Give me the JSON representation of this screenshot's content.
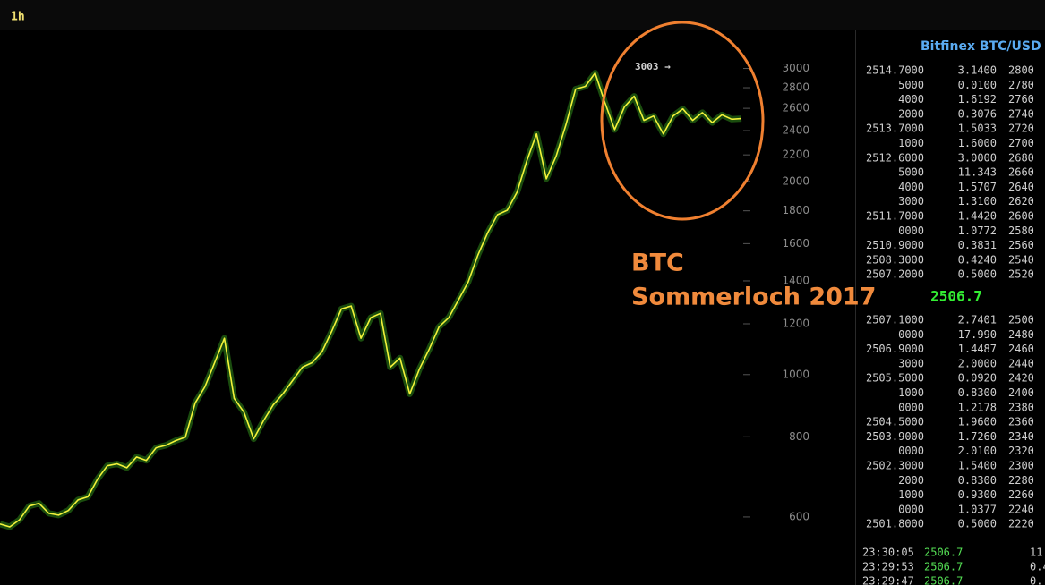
{
  "toolbar": {
    "interval": "1h"
  },
  "chart_data": {
    "type": "line",
    "log_scale": true,
    "grid": false,
    "peak_label": "3003 →",
    "annotation_lines": [
      "BTC",
      "Sommerloch 2017"
    ],
    "color": "#f2f23a",
    "glow_color": "#2f8a1a",
    "categories": [
      null,
      null,
      null,
      null,
      null,
      null,
      null,
      null,
      null,
      null,
      null,
      null,
      null,
      null,
      null,
      null,
      null,
      null,
      null,
      null,
      null,
      null,
      null,
      null,
      null,
      null,
      null,
      null,
      null,
      null,
      null,
      null,
      null,
      null,
      null,
      null,
      null,
      null,
      null,
      null,
      null,
      null,
      null,
      null,
      null,
      null,
      null,
      null,
      null,
      null,
      null,
      null,
      null,
      null,
      null,
      null,
      null,
      null,
      null,
      null,
      null,
      null,
      null,
      null,
      null,
      null,
      null,
      null,
      null,
      null,
      null,
      null,
      null,
      null,
      null,
      null,
      null
    ],
    "values": [
      585,
      579,
      594,
      624,
      630,
      608,
      604,
      614,
      638,
      645,
      687,
      721,
      726,
      716,
      744,
      735,
      769,
      776,
      789,
      799,
      903,
      957,
      1044,
      1139,
      918,
      874,
      794,
      847,
      897,
      933,
      979,
      1027,
      1044,
      1085,
      1168,
      1266,
      1279,
      1139,
      1227,
      1246,
      1027,
      1061,
      933,
      1021,
      1096,
      1187,
      1227,
      1308,
      1395,
      1537,
      1665,
      1775,
      1804,
      1924,
      2153,
      2372,
      2019,
      2189,
      2449,
      2786,
      2814,
      2952,
      2655,
      2409,
      2613,
      2715,
      2490,
      2529,
      2372,
      2529,
      2595,
      2490,
      2560,
      2470,
      2540,
      2500,
      2506
    ],
    "ylim": [
      470,
      3450
    ],
    "yticks": [
      600,
      800,
      1000,
      1200,
      1400,
      1600,
      1800,
      2000,
      2200,
      2400,
      2600,
      2800,
      3000
    ]
  },
  "order_book": {
    "title": "Bitfinex BTC/USD",
    "asks": [
      [
        "2514.7000",
        "3.1400",
        "2800"
      ],
      [
        "5000",
        "0.0100",
        "2780"
      ],
      [
        "4000",
        "1.6192",
        "2760"
      ],
      [
        "2000",
        "0.3076",
        "2740"
      ],
      [
        "2513.7000",
        "1.5033",
        "2720"
      ],
      [
        "1000",
        "1.6000",
        "2700"
      ],
      [
        "2512.6000",
        "3.0000",
        "2680"
      ],
      [
        "5000",
        "11.343",
        "2660"
      ],
      [
        "4000",
        "1.5707",
        "2640"
      ],
      [
        "3000",
        "1.3100",
        "2620"
      ],
      [
        "2511.7000",
        "1.4420",
        "2600"
      ],
      [
        "0000",
        "1.0772",
        "2580"
      ],
      [
        "2510.9000",
        "0.3831",
        "2560"
      ],
      [
        "2508.3000",
        "0.4240",
        "2540"
      ],
      [
        "2507.2000",
        "0.5000",
        "2520"
      ]
    ],
    "last_price": "2506.7",
    "bids": [
      [
        "2507.1000",
        "2.7401",
        "2500"
      ],
      [
        "0000",
        "17.990",
        "2480"
      ],
      [
        "2506.9000",
        "1.4487",
        "2460"
      ],
      [
        "3000",
        "2.0000",
        "2440"
      ],
      [
        "2505.5000",
        "0.0920",
        "2420"
      ],
      [
        "1000",
        "0.8300",
        "2400"
      ],
      [
        "0000",
        "1.2178",
        "2380"
      ],
      [
        "2504.5000",
        "1.9600",
        "2360"
      ],
      [
        "2503.9000",
        "1.7260",
        "2340"
      ],
      [
        "0000",
        "2.0100",
        "2320"
      ],
      [
        "2502.3000",
        "1.5400",
        "2300"
      ],
      [
        "2000",
        "0.8300",
        "2280"
      ],
      [
        "1000",
        "0.9300",
        "2260"
      ],
      [
        "0000",
        "1.0377",
        "2240"
      ],
      [
        "2501.8000",
        "0.5000",
        "2220"
      ]
    ],
    "trades": [
      [
        "23:30:05",
        "2506.7",
        "11"
      ],
      [
        "23:29:53",
        "2506.7",
        "0.4"
      ],
      [
        "23:29:47",
        "2506.7",
        "0."
      ]
    ]
  }
}
